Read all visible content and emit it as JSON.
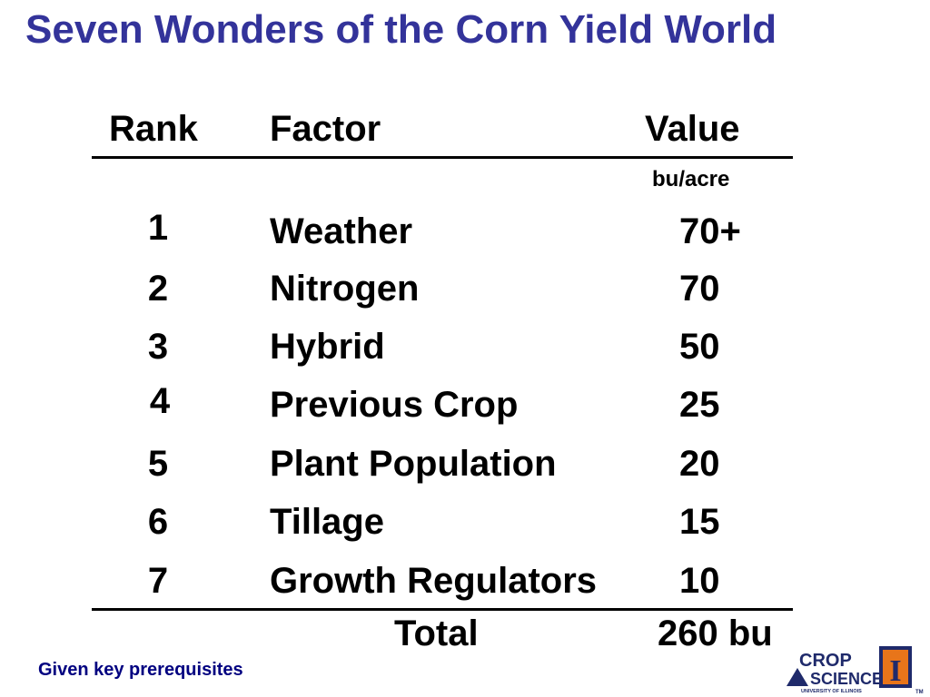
{
  "slide": {
    "title": "Seven Wonders of the Corn Yield World",
    "footnote": "Given key prerequisites"
  },
  "table": {
    "headers": {
      "rank": "Rank",
      "factor": "Factor",
      "value": "Value"
    },
    "unit": "bu/acre",
    "rows": [
      {
        "rank": "1",
        "factor": "Weather",
        "value": "70+"
      },
      {
        "rank": "2",
        "factor": "Nitrogen",
        "value": "70"
      },
      {
        "rank": "3",
        "factor": "Hybrid",
        "value": "50"
      },
      {
        "rank": "4",
        "factor": "Previous Crop",
        "value": "25"
      },
      {
        "rank": "5",
        "factor": "Plant Population",
        "value": "20"
      },
      {
        "rank": "6",
        "factor": "Tillage",
        "value": "15"
      },
      {
        "rank": "7",
        "factor": "Growth Regulators",
        "value": "10"
      }
    ],
    "total_label": "Total",
    "total_value": "260 bu"
  },
  "logo": {
    "text_line1": "CROP",
    "text_line2": "SCIENCES",
    "text_line3": "UNIVERSITY OF ILLINOIS",
    "trademark": "TM",
    "emblem_letter": "I",
    "colors": {
      "navy": "#1f2a6b",
      "orange": "#e8751a"
    }
  },
  "colors": {
    "title": "#33339a",
    "footnote": "#000080"
  }
}
